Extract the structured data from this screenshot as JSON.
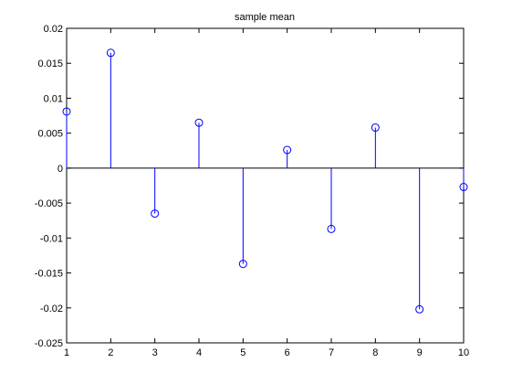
{
  "chart_data": {
    "type": "stem",
    "title": "sample mean",
    "xlabel": "",
    "ylabel": "",
    "x": [
      1,
      2,
      3,
      4,
      5,
      6,
      7,
      8,
      9,
      10
    ],
    "values": [
      0.0081,
      0.0165,
      -0.0065,
      0.0065,
      -0.0137,
      0.0026,
      -0.0087,
      0.0058,
      -0.0202,
      -0.0027
    ],
    "xlim": [
      1,
      10
    ],
    "ylim": [
      -0.025,
      0.02
    ],
    "xticks": [
      "1",
      "2",
      "3",
      "4",
      "5",
      "6",
      "7",
      "8",
      "9",
      "10"
    ],
    "yticks": [
      "0.02",
      "0.015",
      "0.01",
      "0.005",
      "0",
      "-0.005",
      "-0.01",
      "-0.015",
      "-0.02",
      "-0.025"
    ],
    "grid": false,
    "colors": {
      "stem": "#0000ff",
      "baseline": "#000000",
      "axes": "#000000"
    }
  }
}
